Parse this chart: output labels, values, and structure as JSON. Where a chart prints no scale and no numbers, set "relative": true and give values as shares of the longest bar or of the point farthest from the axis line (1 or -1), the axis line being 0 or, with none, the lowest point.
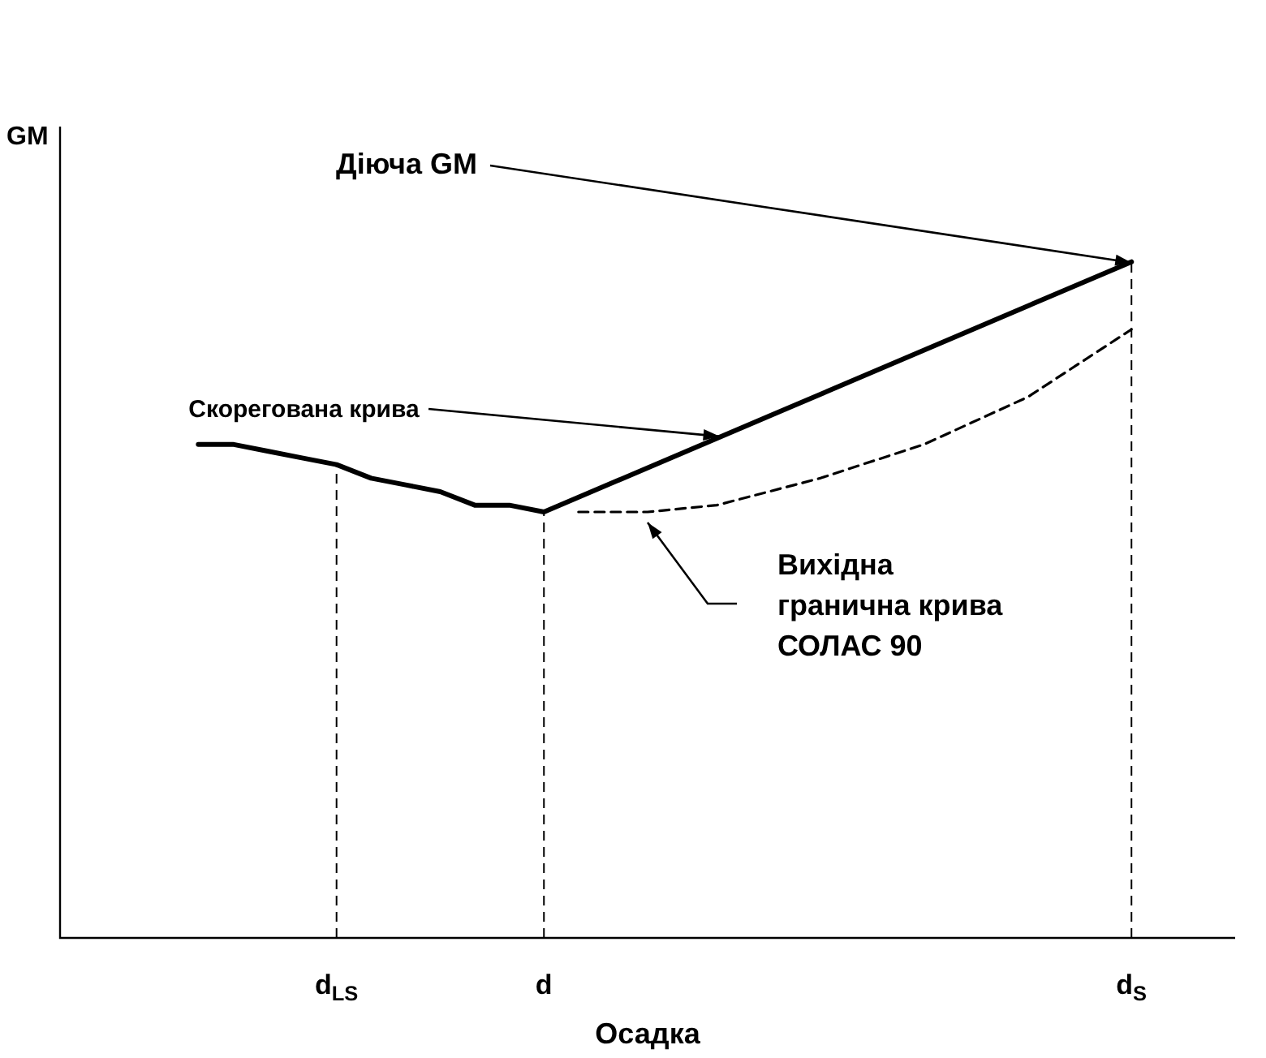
{
  "chart_data": {
    "type": "line",
    "relative": true,
    "xlabel": "Осадка",
    "ylabel": "GM",
    "marker": "none",
    "legend": false,
    "categories": [
      null,
      null,
      null,
      null,
      null,
      null,
      null,
      null,
      "d$_{LS}$",
      null,
      null,
      null,
      null,
      null,
      "d",
      null,
      null,
      null,
      null,
      null,
      null,
      null,
      null,
      null,
      null,
      null,
      null,
      null,
      null,
      null,
      null,
      "d$_{S}$",
      null,
      null,
      null
    ],
    "series": [
      {
        "name": "Скорегована крива",
        "color": "#000000",
        "line_style": "solid",
        "values": [
          null,
          null,
          null,
          null,
          0.73,
          0.73,
          0.72,
          0.71,
          0.7,
          0.68,
          0.67,
          0.66,
          0.64,
          0.64,
          0.63,
          null,
          null,
          null,
          null,
          null,
          null,
          null,
          null,
          null,
          null,
          null,
          null,
          null,
          null,
          null,
          null,
          1.0,
          null,
          null,
          null
        ]
      },
      {
        "name": "Вихідна гранична крива СОЛАС 90",
        "color": "#000000",
        "line_style": "dashed",
        "values": [
          null,
          null,
          null,
          null,
          null,
          null,
          null,
          null,
          null,
          null,
          null,
          null,
          null,
          null,
          null,
          0.63,
          null,
          0.63,
          null,
          0.64,
          null,
          null,
          0.68,
          null,
          null,
          0.73,
          null,
          null,
          0.8,
          null,
          null,
          0.9,
          null,
          null,
          null
        ]
      }
    ],
    "annotations": [
      {
        "text": "Діюча GM",
        "x": "d$_{S}$",
        "y": 1.0
      }
    ],
    "ref_lines": [
      {
        "axis": "x",
        "value": "d$_{LS}$",
        "line_style": "dashed",
        "color": "#000000"
      },
      {
        "axis": "x",
        "value": "d",
        "line_style": "dashed",
        "color": "#000000"
      },
      {
        "axis": "x",
        "value": "d$_{S}$",
        "line_style": "dashed",
        "color": "#000000"
      }
    ]
  }
}
